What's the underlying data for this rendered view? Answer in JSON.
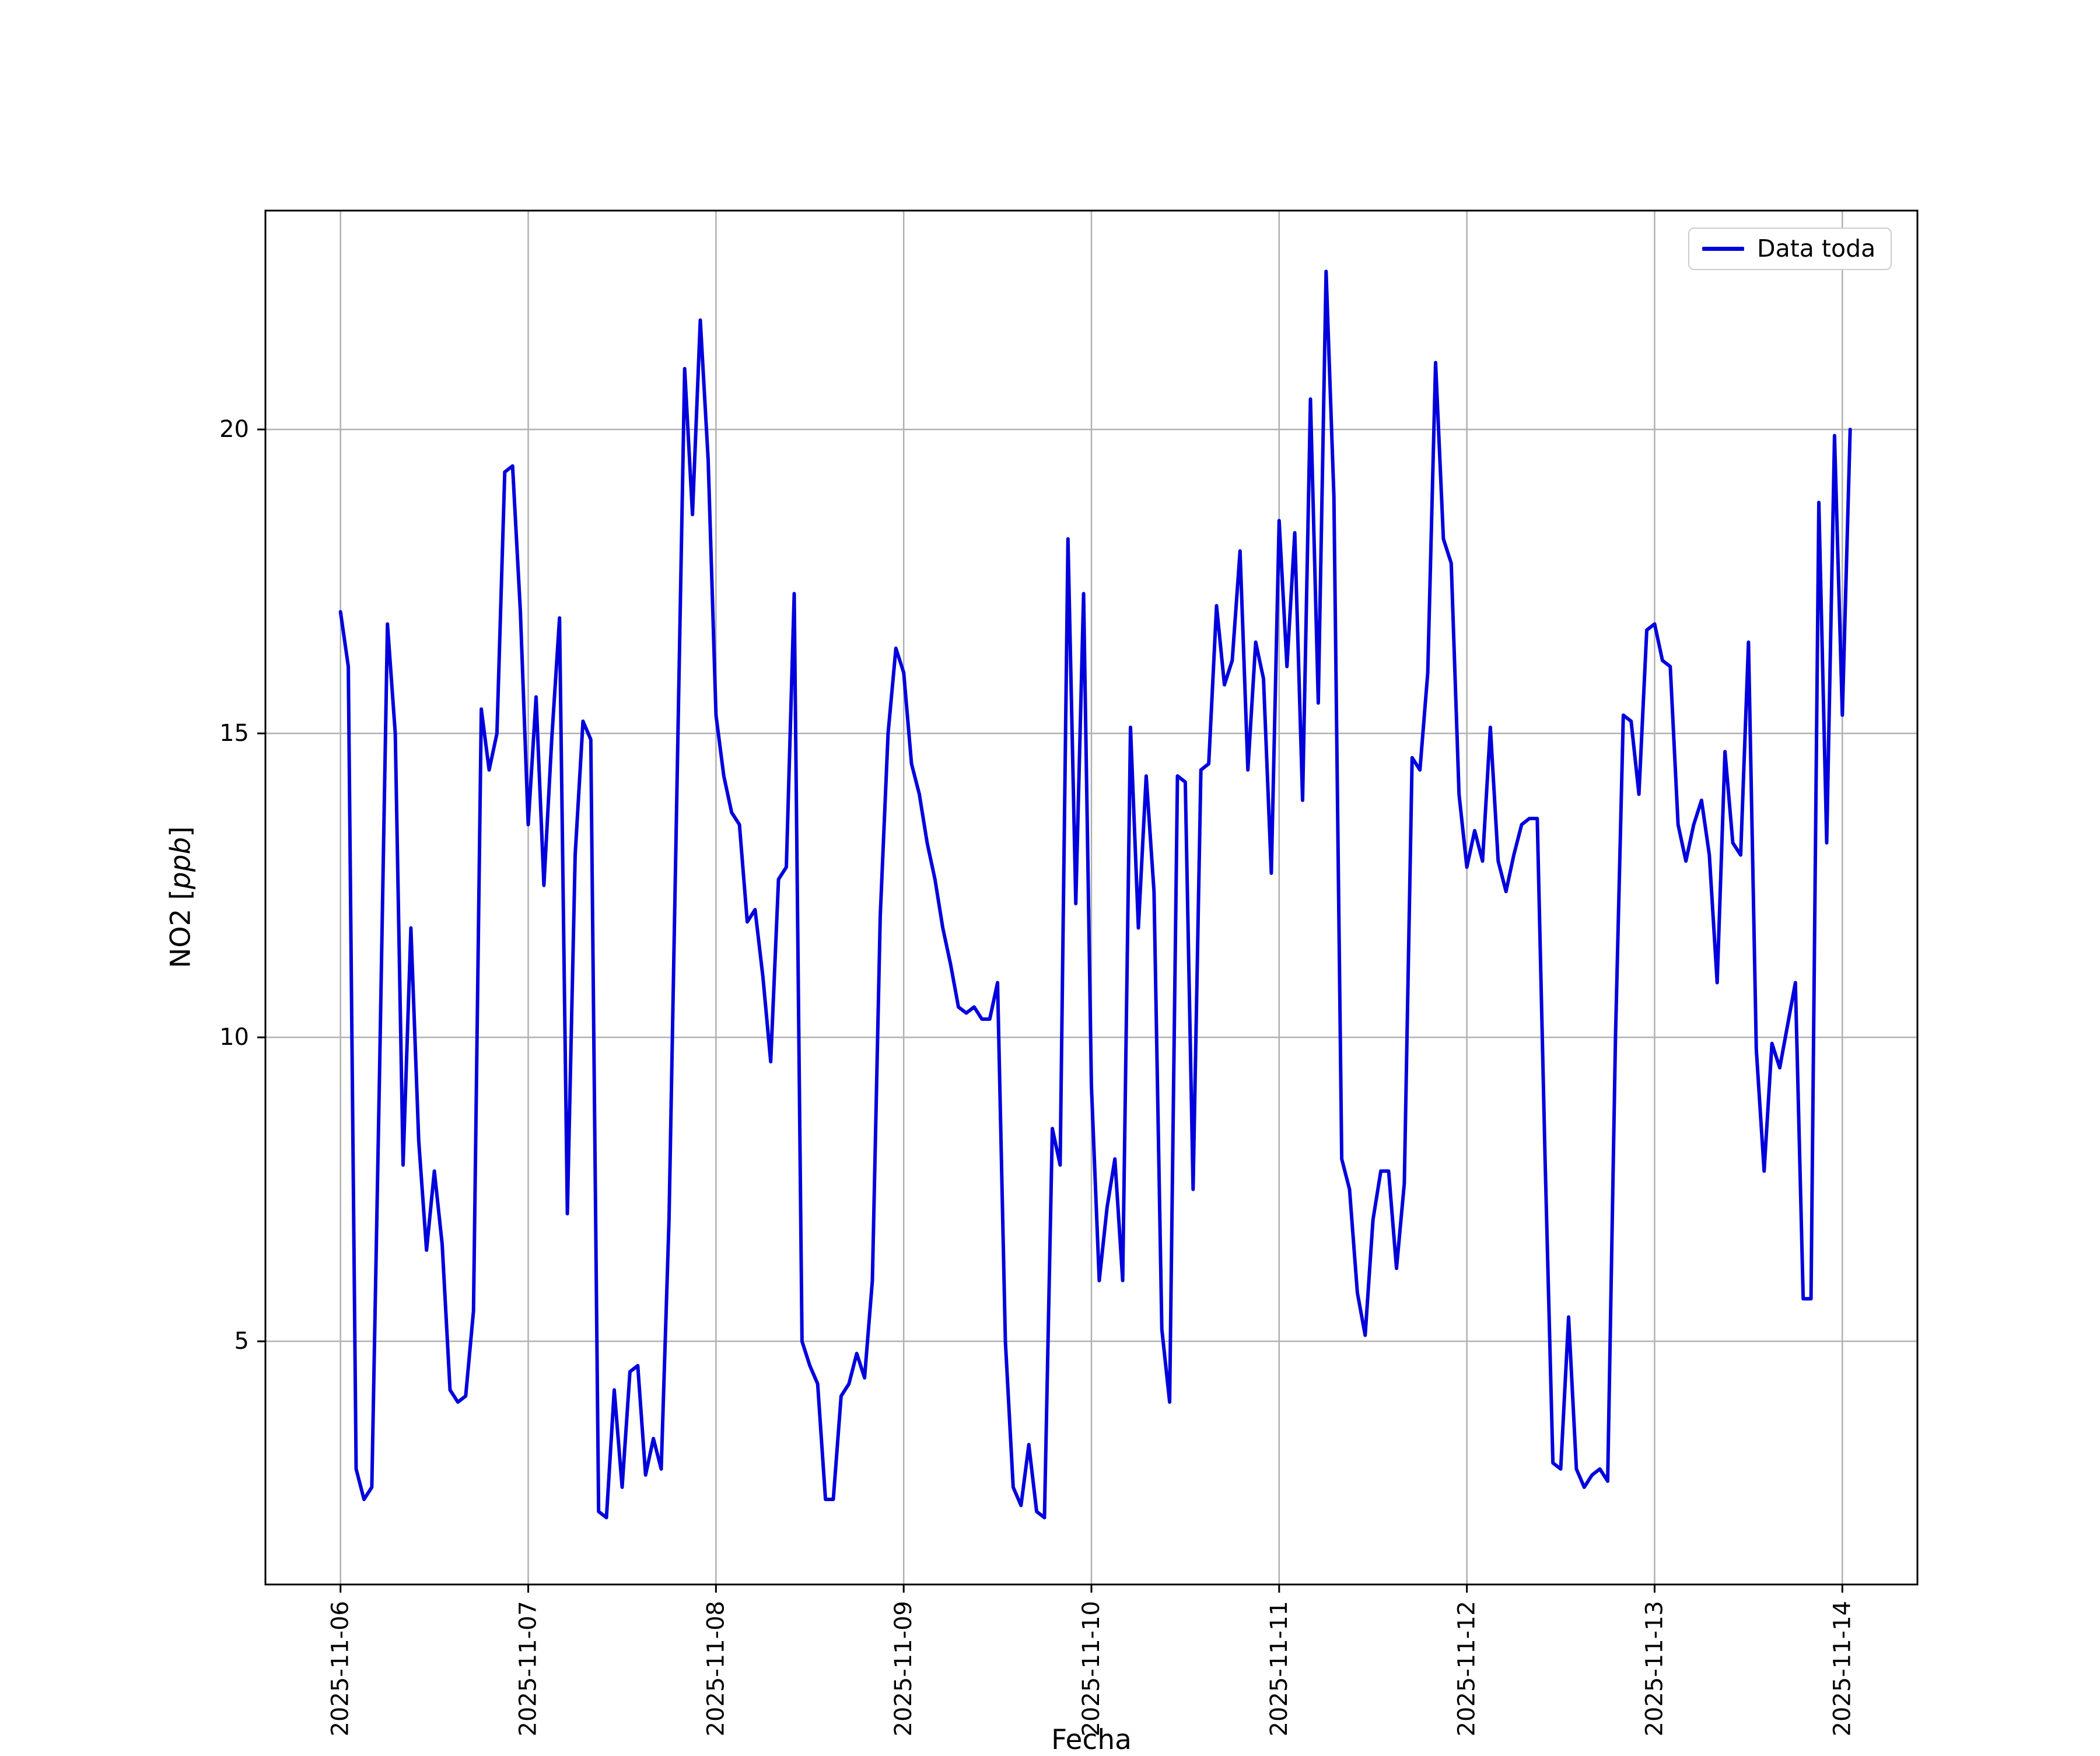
{
  "figure": {
    "background_color": "#ffffff",
    "grid_color": "#b0b0b0",
    "spine_color": "#000000"
  },
  "legend": {
    "label": "Data toda",
    "position": "upper right"
  },
  "axes": {
    "xlabel": "Fecha",
    "ylabel_prefix": "NO2 [",
    "ylabel_unit": "ppb",
    "ylabel_suffix": "]"
  },
  "chart_data": {
    "type": "line",
    "title": "",
    "xlabel": "Fecha",
    "ylabel": "NO2 [ppb]",
    "grid": true,
    "legend_position": "upper right",
    "x_start_hour": 0,
    "x_step_hours": 1,
    "x_tick_hours": [
      0,
      24,
      48,
      72,
      96,
      120,
      144,
      168,
      192
    ],
    "x_tick_labels": [
      "2025-11-06",
      "2025-11-07",
      "2025-11-08",
      "2025-11-09",
      "2025-11-10",
      "2025-11-11",
      "2025-11-12",
      "2025-11-13",
      "2025-11-14"
    ],
    "y_ticks": [
      5,
      10,
      15,
      20
    ],
    "xlim_hours": [
      -9.6,
      201.6
    ],
    "ylim": [
      1.0,
      23.6
    ],
    "series": [
      {
        "name": "Data toda",
        "color": "#0000dd",
        "line_width": 6,
        "values": [
          17.0,
          16.1,
          2.9,
          2.4,
          2.6,
          9.5,
          16.8,
          15.0,
          7.9,
          11.8,
          8.3,
          6.5,
          7.8,
          6.6,
          4.2,
          4.0,
          4.1,
          5.5,
          15.4,
          14.4,
          15.0,
          19.3,
          19.4,
          17.0,
          13.5,
          15.6,
          12.5,
          14.9,
          16.9,
          7.1,
          13.0,
          15.2,
          14.9,
          2.2,
          2.1,
          4.2,
          2.6,
          4.5,
          4.6,
          2.8,
          3.4,
          2.9,
          7.0,
          14.0,
          21.0,
          18.6,
          21.8,
          19.5,
          15.3,
          14.3,
          13.7,
          13.5,
          11.9,
          12.1,
          11.0,
          9.6,
          12.6,
          12.8,
          17.3,
          5.0,
          4.6,
          4.3,
          2.4,
          2.4,
          4.1,
          4.3,
          4.8,
          4.4,
          6.0,
          12.0,
          15.0,
          16.4,
          16.0,
          14.5,
          14.0,
          13.2,
          12.6,
          11.8,
          11.2,
          10.5,
          10.4,
          10.5,
          10.3,
          10.3,
          10.9,
          5.0,
          2.6,
          2.3,
          3.3,
          2.2,
          2.1,
          8.5,
          7.9,
          18.2,
          12.2,
          17.3,
          9.2,
          6.0,
          7.2,
          8.0,
          6.0,
          15.1,
          11.8,
          14.3,
          12.4,
          5.2,
          4.0,
          14.3,
          14.2,
          7.5,
          14.4,
          14.5,
          17.1,
          15.8,
          16.2,
          18.0,
          14.4,
          16.5,
          15.9,
          12.7,
          18.5,
          16.1,
          18.3,
          13.9,
          20.5,
          15.5,
          22.6,
          18.9,
          8.0,
          7.5,
          5.8,
          5.1,
          7.0,
          7.8,
          7.8,
          6.2,
          7.6,
          14.6,
          14.4,
          16.0,
          21.1,
          18.2,
          17.8,
          14.0,
          12.8,
          13.4,
          12.9,
          15.1,
          12.9,
          12.4,
          13.0,
          13.5,
          13.6,
          13.6,
          8.0,
          3.0,
          2.9,
          5.4,
          2.9,
          2.6,
          2.8,
          2.9,
          2.7,
          10.0,
          15.3,
          15.2,
          14.0,
          16.7,
          16.8,
          16.2,
          16.1,
          13.5,
          12.9,
          13.5,
          13.9,
          13.0,
          10.9,
          14.7,
          13.2,
          13.0,
          16.5,
          9.8,
          7.8,
          9.9,
          9.5,
          10.2,
          10.9,
          5.7,
          5.7,
          18.8,
          13.2,
          19.9,
          15.3,
          20.0
        ]
      }
    ]
  }
}
